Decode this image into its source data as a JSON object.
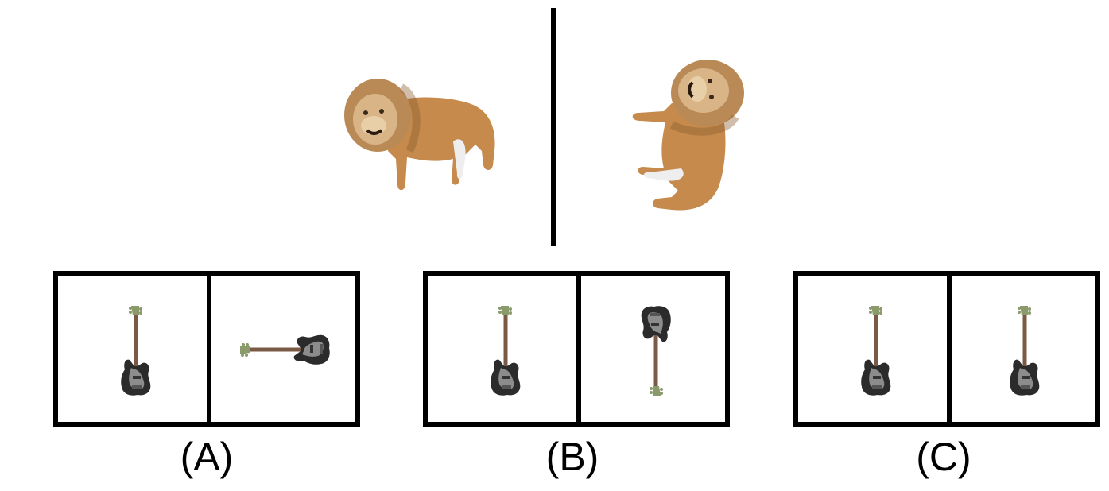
{
  "reference": {
    "left_object": "lion-icon",
    "right_object": "lion-icon"
  },
  "options": [
    {
      "label": "(A)",
      "left_object": "guitar-icon",
      "right_object": "guitar-icon"
    },
    {
      "label": "(B)",
      "left_object": "guitar-icon",
      "right_object": "guitar-icon"
    },
    {
      "label": "(C)",
      "left_object": "guitar-icon",
      "right_object": "guitar-icon"
    }
  ]
}
